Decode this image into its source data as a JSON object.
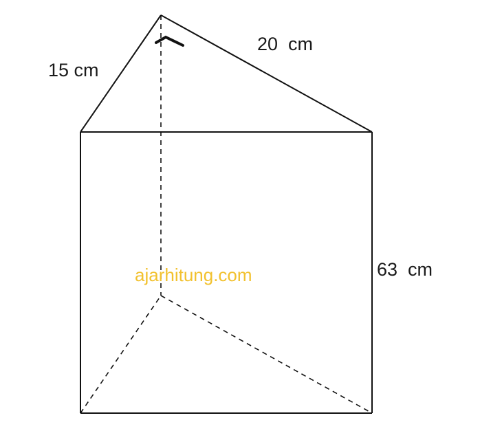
{
  "labels": {
    "side_a": "15 cm",
    "side_b": "20  cm",
    "height": "63  cm"
  },
  "watermark": {
    "text": "ajarhitung.com",
    "color": "#f2c12e"
  },
  "colors": {
    "line": "#111111",
    "text": "#1a1a1a",
    "background": "#ffffff"
  }
}
